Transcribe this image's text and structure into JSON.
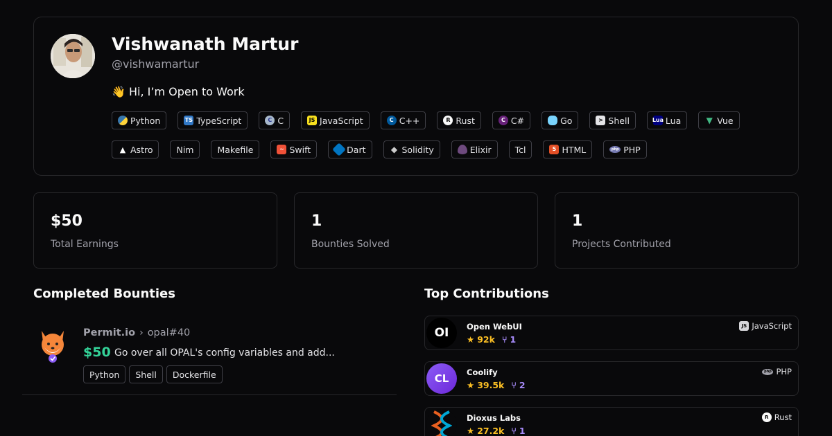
{
  "profile": {
    "name": "Vishwanath Martur",
    "handle": "@vishwamartur",
    "bio_emoji": "👋",
    "bio": "Hi, I’m Open to Work",
    "languages": [
      {
        "label": "Python",
        "icon": "python-icon"
      },
      {
        "label": "TypeScript",
        "icon": "typescript-icon"
      },
      {
        "label": "C",
        "icon": "c-icon"
      },
      {
        "label": "JavaScript",
        "icon": "javascript-icon"
      },
      {
        "label": "C++",
        "icon": "cpp-icon"
      },
      {
        "label": "Rust",
        "icon": "rust-icon"
      },
      {
        "label": "C#",
        "icon": "csharp-icon"
      },
      {
        "label": "Go",
        "icon": "go-icon"
      },
      {
        "label": "Shell",
        "icon": "shell-icon"
      },
      {
        "label": "Lua",
        "icon": "lua-icon"
      },
      {
        "label": "Vue",
        "icon": "vue-icon"
      },
      {
        "label": "Astro",
        "icon": "astro-icon"
      },
      {
        "label": "Nim",
        "icon": ""
      },
      {
        "label": "Makefile",
        "icon": ""
      },
      {
        "label": "Swift",
        "icon": "swift-icon"
      },
      {
        "label": "Dart",
        "icon": "dart-icon"
      },
      {
        "label": "Solidity",
        "icon": "solidity-icon"
      },
      {
        "label": "Elixir",
        "icon": "elixir-icon"
      },
      {
        "label": "Tcl",
        "icon": ""
      },
      {
        "label": "HTML",
        "icon": "html-icon"
      },
      {
        "label": "PHP",
        "icon": "php-icon"
      }
    ]
  },
  "stats": [
    {
      "value": "$50",
      "label": "Total Earnings"
    },
    {
      "value": "1",
      "label": "Bounties Solved"
    },
    {
      "value": "1",
      "label": "Projects Contributed"
    }
  ],
  "sections": {
    "completed": "Completed Bounties",
    "top": "Top Contributions"
  },
  "bounties": [
    {
      "org": "Permit.io",
      "issue": "opal#40",
      "amount": "$50",
      "title": "Go over all OPAL's config variables and add...",
      "tags": [
        "Python",
        "Shell",
        "Dockerfile"
      ]
    }
  ],
  "contributions": [
    {
      "name": "Open WebUI",
      "stars": "92k",
      "prs": "1",
      "language": "JavaScript",
      "lang_icon": "javascript-icon",
      "logo_text": "OI"
    },
    {
      "name": "Coolify",
      "stars": "39.5k",
      "prs": "2",
      "language": "PHP",
      "lang_icon": "php-icon",
      "logo_text": "CL"
    },
    {
      "name": "Dioxus Labs",
      "stars": "27.2k",
      "prs": "1",
      "language": "Rust",
      "lang_icon": "rust-icon",
      "logo_text": ""
    }
  ],
  "colors": {
    "bg": "#09090b",
    "border": "#27272a",
    "muted": "#a1a1aa",
    "money": "#34d399",
    "star": "#fbbf24",
    "pr": "#a78bfa"
  }
}
